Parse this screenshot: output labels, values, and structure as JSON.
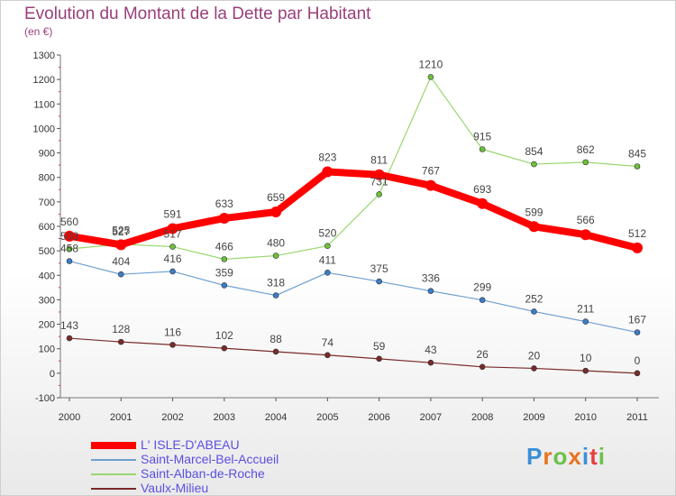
{
  "title": "Evolution du Montant de la Dette par Habitant",
  "subtitle": "(en €)",
  "logo": {
    "text": "Proxiti",
    "colors": [
      "#3a8fd6",
      "#e8731e",
      "#6cc04a",
      "#e8731e",
      "#3a8fd6",
      "#e83e3e",
      "#6cc04a"
    ]
  },
  "chart_data": {
    "type": "line",
    "title": "Evolution du Montant de la Dette par Habitant",
    "ylabel": "(en €)",
    "xlabel": "",
    "x": [
      "2000",
      "2001",
      "2002",
      "2003",
      "2004",
      "2005",
      "2006",
      "2007",
      "2008",
      "2009",
      "2010",
      "2011"
    ],
    "ylim": [
      -100,
      1300
    ],
    "yticks": [
      -100,
      0,
      100,
      200,
      300,
      400,
      500,
      600,
      700,
      800,
      900,
      1000,
      1100,
      1200,
      1300
    ],
    "grid": false,
    "legend_position": "bottom-left",
    "series": [
      {
        "name": "L' ISLE-D'ABEAU",
        "values": [
          560,
          525,
          591,
          633,
          659,
          823,
          811,
          767,
          693,
          599,
          566,
          512
        ],
        "color": "#ff0000",
        "marker": "#ff0000",
        "width": 8,
        "labels": [
          "560",
          "525",
          "591",
          "633",
          "659",
          "823",
          "811",
          "767",
          "693",
          "599",
          "566",
          "512"
        ]
      },
      {
        "name": "Saint-Marcel-Bel-Accueil",
        "values": [
          458,
          404,
          416,
          359,
          318,
          411,
          375,
          336,
          299,
          252,
          211,
          167
        ],
        "color": "#6e9fd0",
        "marker": "#3a7cc8",
        "width": 1.2,
        "labels": [
          "458",
          "404",
          "416",
          "359",
          "318",
          "411",
          "375",
          "336",
          "299",
          "252",
          "211",
          "167"
        ]
      },
      {
        "name": "Saint-Alban-de-Roche",
        "values": [
          508,
          527,
          517,
          466,
          480,
          520,
          731,
          1210,
          915,
          854,
          862,
          845
        ],
        "color": "#9ad66e",
        "marker": "#6cc03a",
        "width": 1.2,
        "labels": [
          "508",
          "527",
          "517",
          "466",
          "480",
          "520",
          "731",
          "1210",
          "915",
          "854",
          "862",
          "845"
        ]
      },
      {
        "name": "Vaulx-Milieu",
        "values": [
          143,
          128,
          116,
          102,
          88,
          74,
          59,
          43,
          26,
          20,
          10,
          0
        ],
        "color": "#7a2a2a",
        "marker": "#7a2a2a",
        "width": 1.2,
        "labels": [
          "143",
          "128",
          "116",
          "102",
          "88",
          "74",
          "59",
          "43",
          "26",
          "20",
          "10",
          "0"
        ]
      }
    ]
  }
}
